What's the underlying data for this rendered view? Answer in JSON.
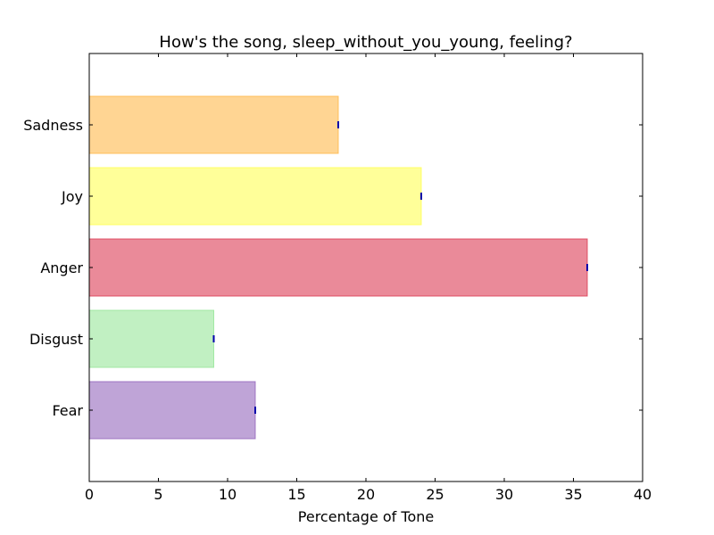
{
  "chart_data": {
    "type": "bar",
    "orientation": "horizontal",
    "title": "How's the song, sleep_without_you_young, feeling?",
    "xlabel": "Percentage of Tone",
    "ylabel": "",
    "xlim": [
      0,
      40
    ],
    "xticks": [
      0,
      5,
      10,
      15,
      20,
      25,
      30,
      35,
      40
    ],
    "categories": [
      "Fear",
      "Disgust",
      "Anger",
      "Joy",
      "Sadness"
    ],
    "values": [
      12,
      9,
      36,
      24,
      18
    ],
    "colors": [
      "#9467bd",
      "#98e69a",
      "#dc3c55",
      "#ffff55",
      "#ffb94b"
    ],
    "bar_opacity": 0.6,
    "grid": false,
    "legend": "none"
  }
}
